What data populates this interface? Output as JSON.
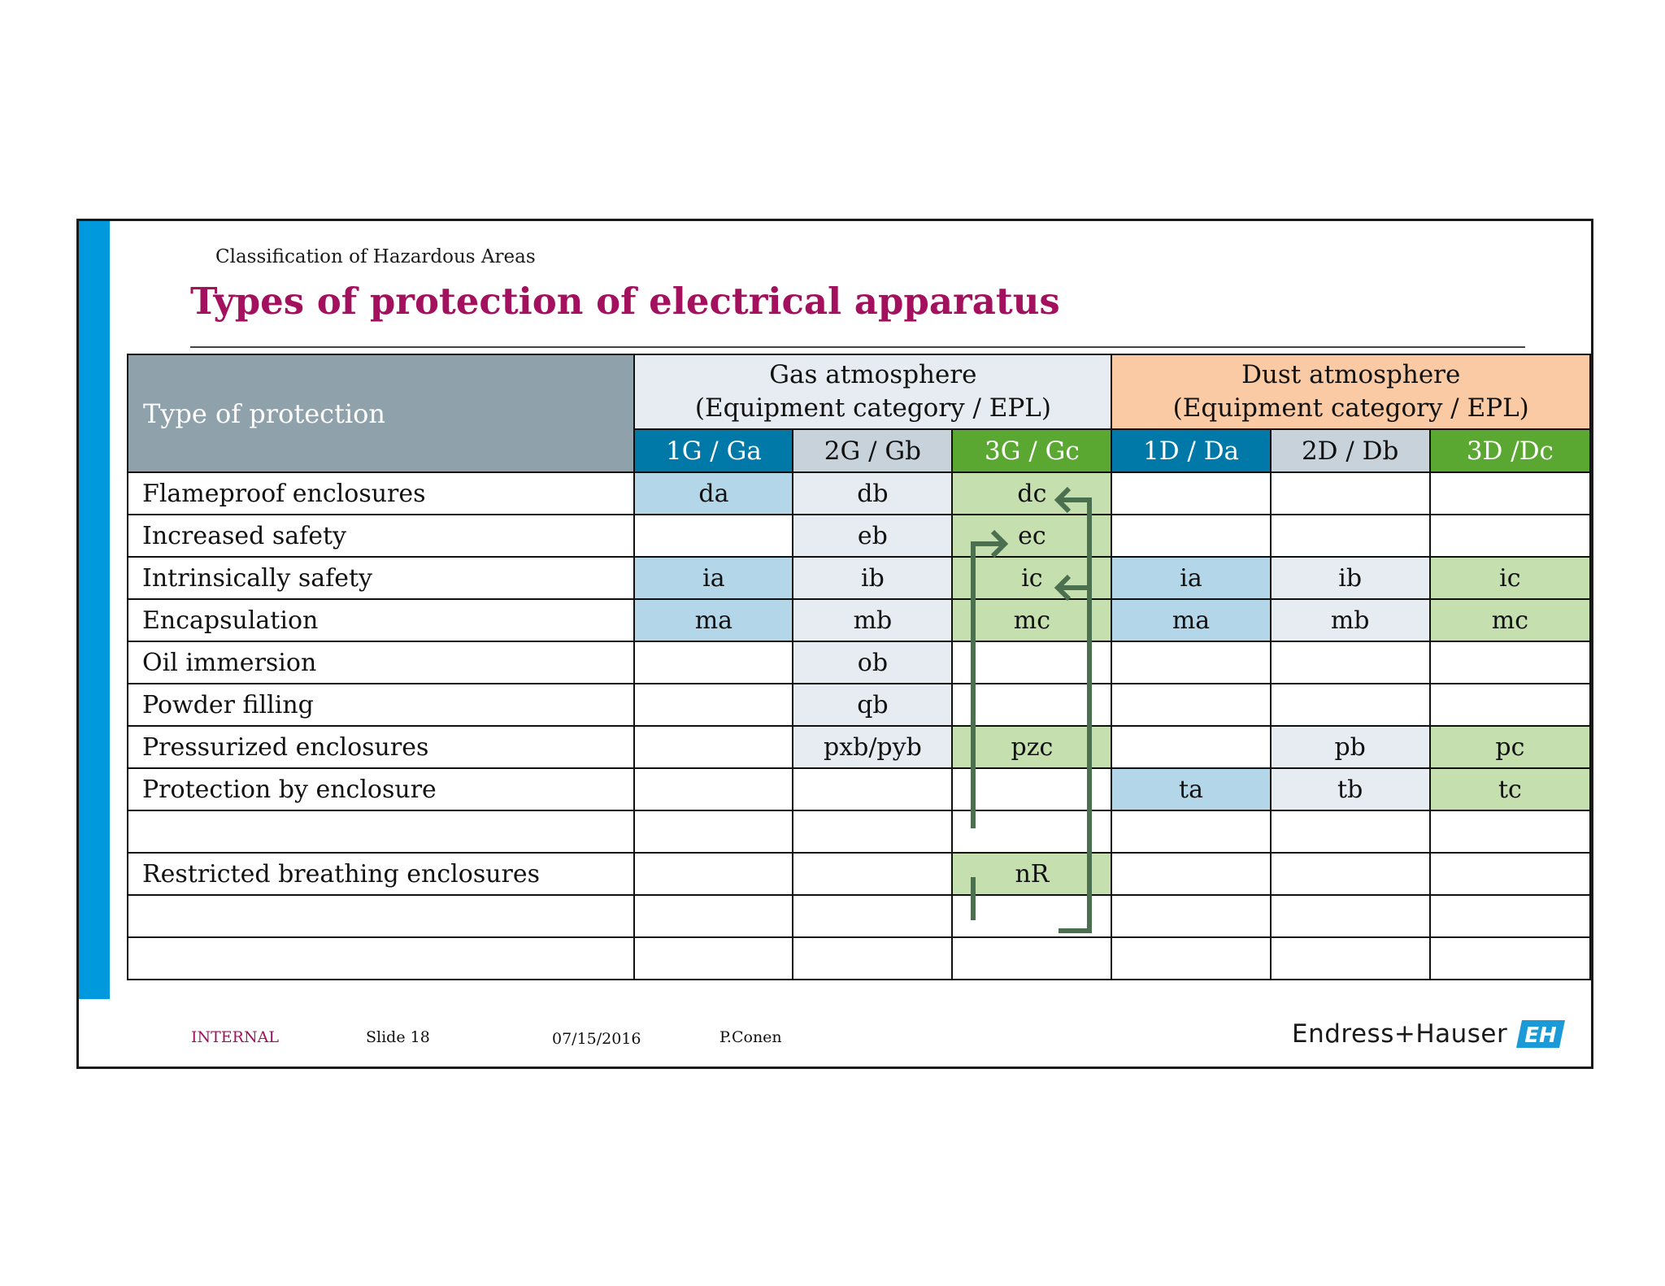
{
  "header": {
    "overline": "Classification of Hazardous Areas",
    "title": "Types of protection of electrical apparatus"
  },
  "table": {
    "corner_label": "Type of protection",
    "gas_header": [
      "Gas atmosphere",
      "(Equipment category / EPL)"
    ],
    "dust_header": [
      "Dust atmosphere",
      "(Equipment category / EPL)"
    ],
    "categories": [
      "1G / Ga",
      "2G / Gb",
      "3G / Gc",
      "1D / Da",
      "2D / Db",
      "3D /Dc"
    ],
    "rows": [
      {
        "label": "Flameproof enclosures",
        "cells": [
          "da",
          "db",
          "dc",
          "",
          "",
          ""
        ]
      },
      {
        "label": "Increased safety",
        "cells": [
          "",
          "eb",
          "ec",
          "",
          "",
          ""
        ]
      },
      {
        "label": "Intrinsically safety",
        "cells": [
          "ia",
          "ib",
          "ic",
          "ia",
          "ib",
          "ic"
        ]
      },
      {
        "label": "Encapsulation",
        "cells": [
          "ma",
          "mb",
          "mc",
          "ma",
          "mb",
          "mc"
        ]
      },
      {
        "label": "Oil immersion",
        "cells": [
          "",
          "ob",
          "",
          "",
          "",
          ""
        ]
      },
      {
        "label": "Powder filling",
        "cells": [
          "",
          "qb",
          "",
          "",
          "",
          ""
        ]
      },
      {
        "label": "Pressurized enclosures",
        "cells": [
          "",
          "pxb/pyb",
          "pzc",
          "",
          "pb",
          "pc"
        ]
      },
      {
        "label": "Protection by enclosure",
        "cells": [
          "",
          "",
          "",
          "ta",
          "tb",
          "tc"
        ]
      },
      {
        "label": "",
        "cells": [
          "",
          "",
          "",
          "",
          "",
          ""
        ]
      },
      {
        "label": "Restricted breathing enclosures",
        "cells": [
          "",
          "",
          "nR",
          "",
          "",
          ""
        ]
      },
      {
        "label": "",
        "cells": [
          "",
          "",
          "",
          "",
          "",
          ""
        ]
      },
      {
        "label": "",
        "cells": [
          "",
          "",
          "",
          "",
          "",
          ""
        ]
      }
    ]
  },
  "footer": {
    "classification": "INTERNAL",
    "slide": "Slide 18",
    "date": "07/15/2016",
    "author": "P.Conen",
    "logo_text": "Endress+Hauser",
    "logo_mark": "EH"
  },
  "colors": {
    "title": "#a3105e",
    "side_bar": "#0099dd",
    "cat_1": "#0079a8",
    "cat_2": "#c8d2da",
    "cat_3": "#5aa832",
    "fill_1": "#b3d6e8",
    "fill_2": "#e6ecf1",
    "fill_3": "#c5dfaf",
    "arrow": "#4a7050"
  }
}
